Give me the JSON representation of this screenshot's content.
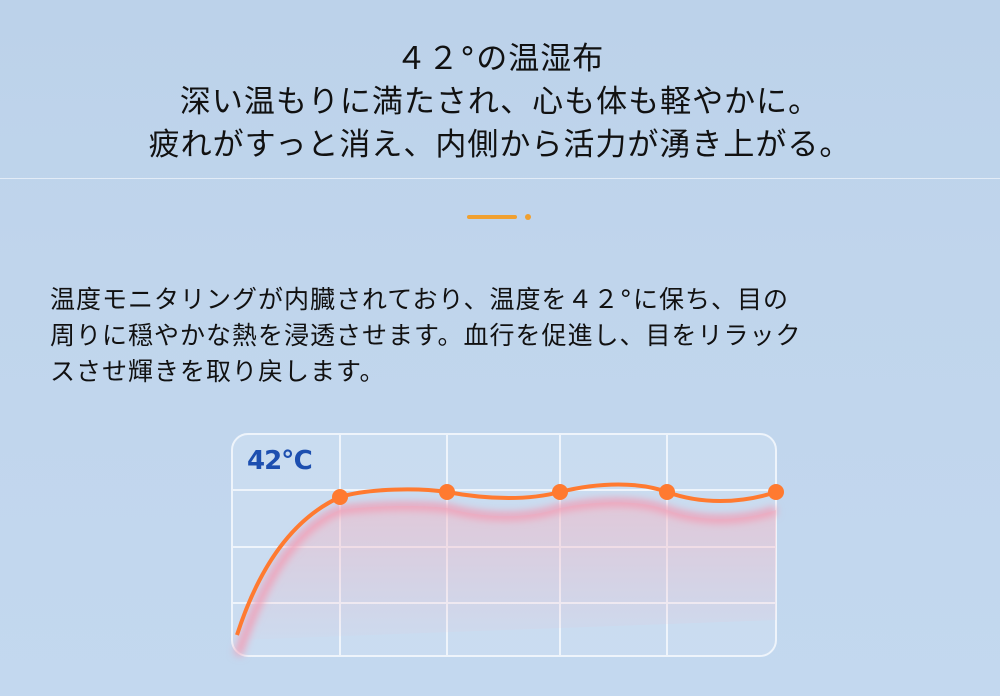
{
  "header": {
    "lines": [
      "４２°の温湿布",
      "深い温もりに満たされ、心も体も軽やかに。",
      "疲れがすっと消え、内側から活力が湧き上がる。"
    ]
  },
  "description": {
    "lines": [
      "温度モニタリングが内臓されており、温度を４２°に保ち、目の",
      "周りに穏やかな熱を浸透させます。血行を促進し、目をリラック",
      "スさせ輝きを取り戻します。"
    ]
  },
  "chart": {
    "label": "42℃",
    "line_color": "#ff7a30",
    "label_color": "#1d4fb0"
  },
  "colors": {
    "accent": "#f0a030",
    "background": "#c0d5ec"
  }
}
